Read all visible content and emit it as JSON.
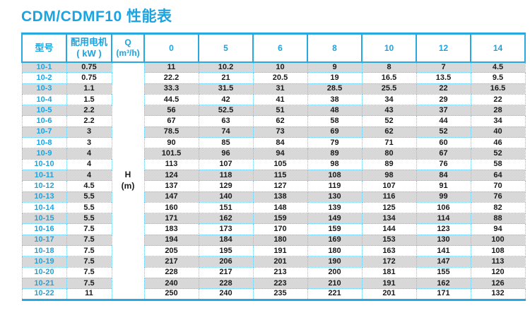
{
  "page": {
    "title": "CDM/CDMF10 性能表"
  },
  "colors": {
    "accent_cyan": "#29a8e0",
    "stripe_gray": "#d8d8d8",
    "dotted_border": "#6fccf0",
    "value_text": "#1a1a1a"
  },
  "table": {
    "header": {
      "model_label": "型号",
      "motor_label_line1": "配用电机",
      "motor_label_line2": "( kW )",
      "flow_label_line1": "Q",
      "flow_label_line2": "(m³/h)",
      "flow_columns": [
        "0",
        "5",
        "6",
        "8",
        "10",
        "12",
        "14"
      ]
    },
    "head_unit": {
      "line1": "H",
      "line2": "(m)"
    },
    "rows": [
      {
        "model": "10-1",
        "kw": "0.75",
        "values": [
          "11",
          "10.2",
          "10",
          "9",
          "8",
          "7",
          "4.5"
        ]
      },
      {
        "model": "10-2",
        "kw": "0.75",
        "values": [
          "22.2",
          "21",
          "20.5",
          "19",
          "16.5",
          "13.5",
          "9.5"
        ]
      },
      {
        "model": "10-3",
        "kw": "1.1",
        "values": [
          "33.3",
          "31.5",
          "31",
          "28.5",
          "25.5",
          "22",
          "16.5"
        ]
      },
      {
        "model": "10-4",
        "kw": "1.5",
        "values": [
          "44.5",
          "42",
          "41",
          "38",
          "34",
          "29",
          "22"
        ]
      },
      {
        "model": "10-5",
        "kw": "2.2",
        "values": [
          "56",
          "52.5",
          "51",
          "48",
          "43",
          "37",
          "28"
        ]
      },
      {
        "model": "10-6",
        "kw": "2.2",
        "values": [
          "67",
          "63",
          "62",
          "58",
          "52",
          "44",
          "34"
        ]
      },
      {
        "model": "10-7",
        "kw": "3",
        "values": [
          "78.5",
          "74",
          "73",
          "69",
          "62",
          "52",
          "40"
        ]
      },
      {
        "model": "10-8",
        "kw": "3",
        "values": [
          "90",
          "85",
          "84",
          "79",
          "71",
          "60",
          "46"
        ]
      },
      {
        "model": "10-9",
        "kw": "4",
        "values": [
          "101.5",
          "96",
          "94",
          "89",
          "80",
          "67",
          "52"
        ]
      },
      {
        "model": "10-10",
        "kw": "4",
        "values": [
          "113",
          "107",
          "105",
          "98",
          "89",
          "76",
          "58"
        ]
      },
      {
        "model": "10-11",
        "kw": "4",
        "values": [
          "124",
          "118",
          "115",
          "108",
          "98",
          "84",
          "64"
        ]
      },
      {
        "model": "10-12",
        "kw": "4.5",
        "values": [
          "137",
          "129",
          "127",
          "119",
          "107",
          "91",
          "70"
        ]
      },
      {
        "model": "10-13",
        "kw": "5.5",
        "values": [
          "147",
          "140",
          "138",
          "130",
          "116",
          "99",
          "76"
        ]
      },
      {
        "model": "10-14",
        "kw": "5.5",
        "values": [
          "160",
          "151",
          "148",
          "139",
          "125",
          "106",
          "82"
        ]
      },
      {
        "model": "10-15",
        "kw": "5.5",
        "values": [
          "171",
          "162",
          "159",
          "149",
          "134",
          "114",
          "88"
        ]
      },
      {
        "model": "10-16",
        "kw": "7.5",
        "values": [
          "183",
          "173",
          "170",
          "159",
          "144",
          "123",
          "94"
        ]
      },
      {
        "model": "10-17",
        "kw": "7.5",
        "values": [
          "194",
          "184",
          "180",
          "169",
          "153",
          "130",
          "100"
        ]
      },
      {
        "model": "10-18",
        "kw": "7.5",
        "values": [
          "205",
          "195",
          "191",
          "180",
          "163",
          "141",
          "108"
        ]
      },
      {
        "model": "10-19",
        "kw": "7.5",
        "values": [
          "217",
          "206",
          "201",
          "190",
          "172",
          "147",
          "113"
        ]
      },
      {
        "model": "10-20",
        "kw": "7.5",
        "values": [
          "228",
          "217",
          "213",
          "200",
          "181",
          "155",
          "120"
        ]
      },
      {
        "model": "10-21",
        "kw": "7.5",
        "values": [
          "240",
          "228",
          "223",
          "210",
          "191",
          "162",
          "126"
        ]
      },
      {
        "model": "10-22",
        "kw": "11",
        "values": [
          "250",
          "240",
          "235",
          "221",
          "201",
          "171",
          "132"
        ]
      }
    ]
  }
}
